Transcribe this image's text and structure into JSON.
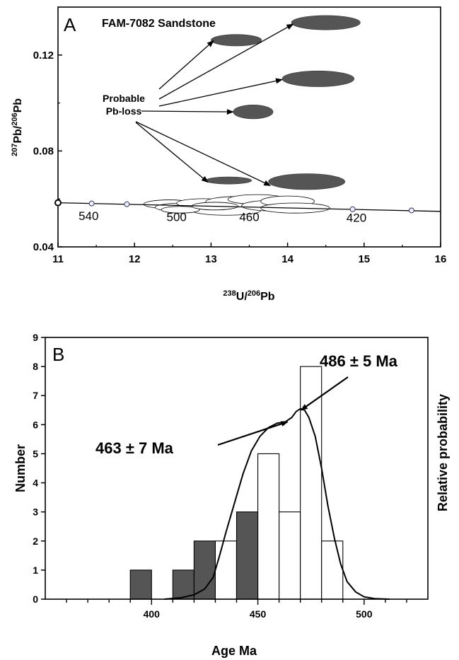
{
  "chart_data": [
    {
      "type": "scatter",
      "panel_label": "A",
      "title": "FAM-7082 Sandstone",
      "xlabel": {
        "base": "U/",
        "sup1": "238",
        "sup2": "206",
        "tail": "Pb"
      },
      "ylabel": {
        "sup1": "207",
        "mid": "Pb/",
        "sup2": "206",
        "tail": "Pb"
      },
      "xlim": [
        11,
        16
      ],
      "ylim": [
        0.04,
        0.14
      ],
      "x_ticks": [
        11,
        12,
        13,
        14,
        15,
        16
      ],
      "y_ticks": [
        0.04,
        0.08,
        0.12
      ],
      "y_tick_labels": [
        "0.04",
        "0.08",
        "0.12"
      ],
      "concordia": {
        "points": [
          [
            11.0,
            0.0584
          ],
          [
            11.44,
            0.0581
          ],
          [
            11.9,
            0.0578
          ],
          [
            14.85,
            0.0557
          ],
          [
            15.62,
            0.0552
          ]
        ],
        "age_labels": [
          {
            "text": "540",
            "x": 11.4,
            "y": 0.0512
          },
          {
            "text": "500",
            "x": 12.55,
            "y": 0.0508
          },
          {
            "text": "460",
            "x": 13.5,
            "y": 0.0508
          },
          {
            "text": "420",
            "x": 14.9,
            "y": 0.0504
          }
        ]
      },
      "annotation": {
        "line1": "Probable",
        "line2": "Pb-loss"
      },
      "pb_loss_ellipses": [
        {
          "x": 13.33,
          "y": 0.1262,
          "rx": 0.33,
          "ry": 0.0024
        },
        {
          "x": 14.5,
          "y": 0.1335,
          "rx": 0.45,
          "ry": 0.003
        },
        {
          "x": 14.4,
          "y": 0.1101,
          "rx": 0.47,
          "ry": 0.0033
        },
        {
          "x": 13.55,
          "y": 0.0963,
          "rx": 0.26,
          "ry": 0.0029
        },
        {
          "x": 13.23,
          "y": 0.0677,
          "rx": 0.3,
          "ry": 0.0015
        },
        {
          "x": 14.25,
          "y": 0.0672,
          "rx": 0.5,
          "ry": 0.0033
        }
      ],
      "concordant_ellipses": [
        {
          "x": 12.45,
          "y": 0.0578,
          "rx": 0.33,
          "ry": 0.0018
        },
        {
          "x": 12.65,
          "y": 0.0565,
          "rx": 0.38,
          "ry": 0.0018
        },
        {
          "x": 12.9,
          "y": 0.0582,
          "rx": 0.35,
          "ry": 0.0019
        },
        {
          "x": 13.2,
          "y": 0.0552,
          "rx": 0.45,
          "ry": 0.002
        },
        {
          "x": 13.35,
          "y": 0.0588,
          "rx": 0.42,
          "ry": 0.0022
        },
        {
          "x": 13.6,
          "y": 0.0598,
          "rx": 0.38,
          "ry": 0.002
        },
        {
          "x": 13.8,
          "y": 0.0572,
          "rx": 0.4,
          "ry": 0.0022
        },
        {
          "x": 14.0,
          "y": 0.059,
          "rx": 0.35,
          "ry": 0.0022
        },
        {
          "x": 14.1,
          "y": 0.0562,
          "rx": 0.45,
          "ry": 0.0021
        },
        {
          "x": 12.6,
          "y": 0.0555,
          "rx": 0.25,
          "ry": 0.0014
        },
        {
          "x": 13.05,
          "y": 0.057,
          "rx": 0.3,
          "ry": 0.0016
        }
      ]
    },
    {
      "type": "bar",
      "panel_label": "B",
      "xlabel": "Age Ma",
      "ylabel": "Number",
      "ylabel_right": "Relative probability",
      "xlim": [
        350,
        530
      ],
      "ylim": [
        0,
        9
      ],
      "x_ticks": [
        400,
        450,
        500
      ],
      "y_ticks": [
        0,
        1,
        2,
        3,
        4,
        5,
        6,
        7,
        8,
        9
      ],
      "bin_width": 10,
      "series": [
        {
          "name": "",
          "color": "#555555",
          "bins": [
            [
              390,
              1
            ],
            [
              410,
              1
            ],
            [
              420,
              2
            ],
            [
              440,
              3
            ]
          ]
        },
        {
          "name": "",
          "color": "#ffffff",
          "bins": [
            [
              430,
              2
            ],
            [
              440,
              2
            ],
            [
              450,
              5
            ],
            [
              460,
              3
            ],
            [
              470,
              8
            ],
            [
              480,
              2
            ]
          ]
        }
      ],
      "probability_curve": [
        [
          406,
          0.0
        ],
        [
          414,
          0.05
        ],
        [
          420,
          0.15
        ],
        [
          425,
          0.35
        ],
        [
          429,
          0.75
        ],
        [
          432,
          1.5
        ],
        [
          435,
          2.3
        ],
        [
          439,
          3.3
        ],
        [
          443,
          4.3
        ],
        [
          447,
          5.1
        ],
        [
          451,
          5.6
        ],
        [
          455,
          5.9
        ],
        [
          459,
          6.05
        ],
        [
          463,
          6.1
        ],
        [
          466,
          6.25
        ],
        [
          468,
          6.45
        ],
        [
          470,
          6.55
        ],
        [
          472,
          6.5
        ],
        [
          474,
          6.25
        ],
        [
          477,
          5.6
        ],
        [
          480,
          4.5
        ],
        [
          483,
          3.2
        ],
        [
          486,
          2.1
        ],
        [
          489,
          1.2
        ],
        [
          492,
          0.6
        ],
        [
          496,
          0.25
        ],
        [
          500,
          0.08
        ],
        [
          505,
          0.02
        ],
        [
          512,
          0.0
        ]
      ],
      "annotations": [
        {
          "text": "463 ± 7 Ma",
          "x": 463,
          "y": 6.05
        },
        {
          "text": "486 ± 5 Ma",
          "x": 470,
          "y": 6.6
        }
      ]
    }
  ]
}
